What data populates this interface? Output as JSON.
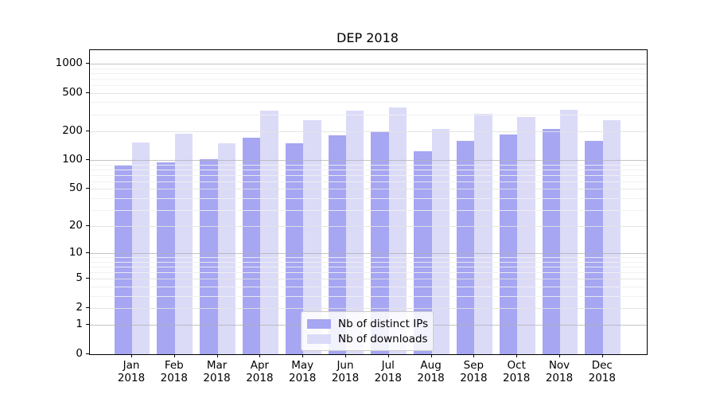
{
  "chart_data": {
    "type": "bar",
    "title": "DEP 2018",
    "categories": [
      "Jan 2018",
      "Feb 2018",
      "Mar 2018",
      "Apr 2018",
      "May 2018",
      "Jun 2018",
      "Jul 2018",
      "Aug 2018",
      "Sep 2018",
      "Oct 2018",
      "Nov 2018",
      "Dec 2018"
    ],
    "month_labels": [
      "Jan",
      "Feb",
      "Mar",
      "Apr",
      "May",
      "Jun",
      "Jul",
      "Aug",
      "Sep",
      "Oct",
      "Nov",
      "Dec"
    ],
    "year_label": "2018",
    "series": [
      {
        "name": "Nb of distinct IPs",
        "color": "#a6a6f2",
        "values": [
          88,
          95,
          103,
          170,
          149,
          180,
          198,
          124,
          160,
          184,
          212,
          160
        ]
      },
      {
        "name": "Nb of downloads",
        "color": "#dbdbf8",
        "values": [
          152,
          187,
          150,
          330,
          260,
          325,
          350,
          210,
          305,
          282,
          335,
          260
        ]
      }
    ],
    "xlabel": "",
    "ylabel": "",
    "yscale": "symlog (position = log10(value+1))",
    "ylim": [
      0,
      1383
    ],
    "yticks": [
      0,
      1,
      2,
      5,
      10,
      20,
      50,
      100,
      200,
      500,
      1000
    ],
    "yticks_decade": [
      1,
      10,
      100,
      1000
    ],
    "yticks_minor": [
      3,
      4,
      6,
      7,
      8,
      9,
      30,
      40,
      60,
      70,
      80,
      90,
      300,
      400,
      600,
      700,
      800,
      900
    ],
    "grid": true,
    "legend_position": "lower center",
    "bar_edge": "none",
    "background_color": "#ffffff",
    "axis_color": "#000000"
  }
}
